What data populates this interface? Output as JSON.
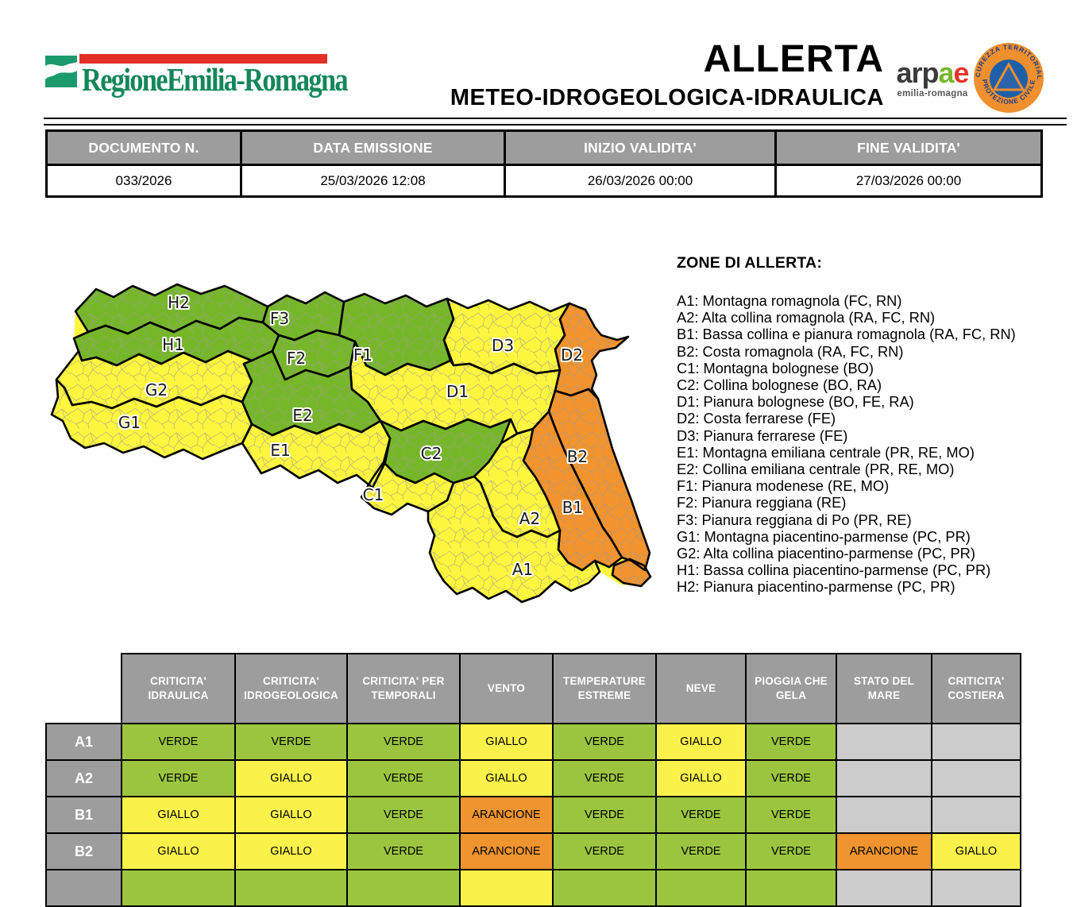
{
  "header": {
    "region_logo_text": "RegioneEmilia-Romagna",
    "title_line1": "ALLERTA",
    "title_line2": "METEO-IDROGEOLOGICA-IDRAULICA",
    "arpae_word_part1": "arp",
    "arpae_word_green": "a",
    "arpae_word_red": "e",
    "arpae_subtitle": "emilia-romagna",
    "pc_text_top": "SICUREZZA TERRITORIALE",
    "pc_text_bottom": "PROTEZIONE CIVILE"
  },
  "doc_table": {
    "headers": [
      "DOCUMENTO N.",
      "DATA EMISSIONE",
      "INIZIO VALIDITA'",
      "FINE VALIDITA'"
    ],
    "values": [
      "033/2026",
      "25/03/2026 12:08",
      "26/03/2026 00:00",
      "27/03/2026 00:00"
    ]
  },
  "map": {
    "zones": [
      {
        "id": "H2",
        "status": "verde"
      },
      {
        "id": "H1",
        "status": "verde"
      },
      {
        "id": "G2",
        "status": "giallo"
      },
      {
        "id": "G1",
        "status": "giallo"
      },
      {
        "id": "F3",
        "status": "verde"
      },
      {
        "id": "F2",
        "status": "verde"
      },
      {
        "id": "F1",
        "status": "verde"
      },
      {
        "id": "E2",
        "status": "verde"
      },
      {
        "id": "E1",
        "status": "giallo"
      },
      {
        "id": "D3",
        "status": "giallo"
      },
      {
        "id": "D2",
        "status": "arancione"
      },
      {
        "id": "D1",
        "status": "giallo"
      },
      {
        "id": "C2",
        "status": "verde"
      },
      {
        "id": "C1",
        "status": "giallo"
      },
      {
        "id": "B2",
        "status": "arancione"
      },
      {
        "id": "B1",
        "status": "arancione"
      },
      {
        "id": "A2",
        "status": "giallo"
      },
      {
        "id": "A1",
        "status": "giallo"
      }
    ]
  },
  "legend": {
    "title": "ZONE DI ALLERTA:",
    "items": [
      "A1: Montagna romagnola (FC, RN)",
      "A2: Alta collina romagnola (RA, FC, RN)",
      "B1: Bassa collina e pianura romagnola (RA, FC, RN)",
      "B2: Costa romagnola (RA, FC, RN)",
      "C1: Montagna bolognese (BO)",
      "C2: Collina bolognese (BO, RA)",
      "D1: Pianura bolognese (BO, FE, RA)",
      "D2: Costa ferrarese (FE)",
      "D3: Pianura ferrarese (FE)",
      "E1: Montagna emiliana centrale (PR, RE, MO)",
      "E2: Collina emiliana centrale (PR, RE, MO)",
      "F1: Pianura modenese (RE, MO)",
      "F2: Pianura reggiana (RE)",
      "F3: Pianura reggiana di Po (PR, RE)",
      "G1: Montagna piacentino-parmense (PC, PR)",
      "G2: Alta collina piacentino-parmense (PC, PR)",
      "H1: Bassa collina piacentino-parmense (PC, PR)",
      "H2: Pianura piacentino-parmense (PC, PR)"
    ]
  },
  "alert_table": {
    "columns": [
      "CRITICITA' IDRAULICA",
      "CRITICITA' IDROGEOLOGICA",
      "CRITICITA' PER TEMPORALI",
      "VENTO",
      "TEMPERATURE ESTREME",
      "NEVE",
      "PIOGGIA CHE GELA",
      "STATO DEL MARE",
      "CRITICITA' COSTIERA"
    ],
    "rows": [
      {
        "zone": "A1",
        "partial": false,
        "cells": [
          "VERDE",
          "VERDE",
          "VERDE",
          "GIALLO",
          "VERDE",
          "GIALLO",
          "VERDE",
          "",
          ""
        ]
      },
      {
        "zone": "A2",
        "partial": false,
        "cells": [
          "VERDE",
          "GIALLO",
          "VERDE",
          "GIALLO",
          "VERDE",
          "GIALLO",
          "VERDE",
          "",
          ""
        ]
      },
      {
        "zone": "B1",
        "partial": false,
        "cells": [
          "GIALLO",
          "GIALLO",
          "VERDE",
          "ARANCIONE",
          "VERDE",
          "VERDE",
          "VERDE",
          "",
          ""
        ]
      },
      {
        "zone": "B2",
        "partial": false,
        "cells": [
          "GIALLO",
          "GIALLO",
          "VERDE",
          "ARANCIONE",
          "VERDE",
          "VERDE",
          "VERDE",
          "ARANCIONE",
          "GIALLO"
        ]
      },
      {
        "zone": "",
        "partial": true,
        "cells": [
          "VERDE",
          "VERDE",
          "VERDE",
          "GIALLO",
          "VERDE",
          "VERDE",
          "VERDE",
          "",
          ""
        ]
      }
    ]
  },
  "colors": {
    "verde": "#9BC53F",
    "giallo": "#FAF24A",
    "arancione": "#F0942F",
    "map_verde": "#76B729",
    "map_giallo": "#FEF63E",
    "map_arancione": "#F2932D",
    "empty": "#CBCBCB",
    "header_gray": "#9D9D9D",
    "logo_green": "#14875A",
    "logo_red": "#E23128",
    "arpae_green": "#76B82A",
    "arpae_red": "#E6332A",
    "pc_orange": "#F08F2E",
    "pc_blue": "#1E5FA8"
  }
}
